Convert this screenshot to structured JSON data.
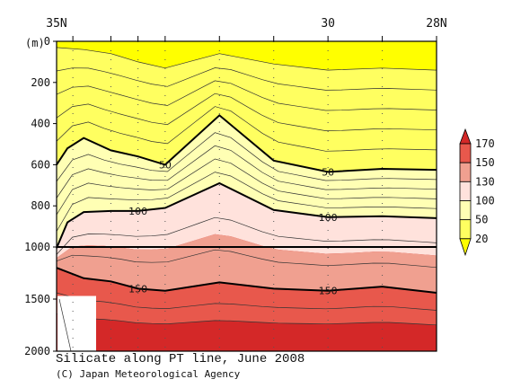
{
  "chart_data": {
    "type": "heatmap",
    "title": "Silicate along PT line, June 2008",
    "credit": "(C) Japan Meteorological Agency",
    "x_ticks": [
      {
        "label": "35N",
        "lat": 35
      },
      {
        "label": "30",
        "lat": 30
      },
      {
        "label": "28N",
        "lat": 28
      }
    ],
    "x_range": [
      35,
      28
    ],
    "y_unit": "(m)",
    "y_ticks_upper": [
      "0",
      "200",
      "400",
      "600",
      "800",
      "1000"
    ],
    "y_ticks_lower": [
      "1500",
      "2000"
    ],
    "y_upper_range": [
      0,
      1000
    ],
    "y_lower_range": [
      1000,
      2000
    ],
    "station_lats": [
      34.7,
      34.0,
      33.5,
      33.0,
      32.0,
      31.0,
      30.0,
      29.0,
      28.0
    ],
    "legend": {
      "levels": [
        20,
        50,
        100,
        130,
        150,
        170
      ],
      "labels": [
        "20",
        "50",
        "100",
        "130",
        "150",
        "170"
      ],
      "colors": [
        "#ffff00",
        "#ffff60",
        "#ffffb4",
        "#ffe2dc",
        "#f0a090",
        "#e8584c",
        "#d42828"
      ]
    },
    "contour_labels": [
      {
        "text": "50",
        "lat": 33.0,
        "depth": 600
      },
      {
        "text": "50",
        "lat": 30.0,
        "depth": 635
      },
      {
        "text": "100",
        "lat": 33.5,
        "depth": 825
      },
      {
        "text": "100",
        "lat": 30.0,
        "depth": 855
      },
      {
        "text": "150",
        "lat": 33.5,
        "depth": 1400
      },
      {
        "text": "150",
        "lat": 30.0,
        "depth": 1420
      }
    ],
    "isolines": [
      {
        "value": 20,
        "points": [
          [
            35,
            30
          ],
          [
            34.5,
            40
          ],
          [
            34,
            60
          ],
          [
            33.5,
            100
          ],
          [
            33,
            130
          ],
          [
            32,
            60
          ],
          [
            31,
            110
          ],
          [
            30,
            140
          ],
          [
            29,
            130
          ],
          [
            28,
            140
          ]
        ]
      },
      {
        "value": 50,
        "points": [
          [
            35,
            600
          ],
          [
            34.8,
            520
          ],
          [
            34.5,
            470
          ],
          [
            34,
            530
          ],
          [
            33.5,
            560
          ],
          [
            33,
            600
          ],
          [
            32,
            360
          ],
          [
            31,
            580
          ],
          [
            30,
            635
          ],
          [
            29,
            620
          ],
          [
            28,
            625
          ]
        ]
      },
      {
        "value": 100,
        "points": [
          [
            35,
            1010
          ],
          [
            34.8,
            880
          ],
          [
            34.5,
            830
          ],
          [
            34,
            825
          ],
          [
            33.5,
            825
          ],
          [
            33,
            810
          ],
          [
            32,
            690
          ],
          [
            31,
            820
          ],
          [
            30,
            855
          ],
          [
            29,
            850
          ],
          [
            28,
            860
          ]
        ]
      },
      {
        "value": 150,
        "points": [
          [
            35,
            1200
          ],
          [
            34.5,
            1300
          ],
          [
            34,
            1330
          ],
          [
            33.5,
            1400
          ],
          [
            33,
            1420
          ],
          [
            32,
            1340
          ],
          [
            31,
            1400
          ],
          [
            30,
            1420
          ],
          [
            29,
            1380
          ],
          [
            28,
            1440
          ]
        ]
      }
    ]
  }
}
